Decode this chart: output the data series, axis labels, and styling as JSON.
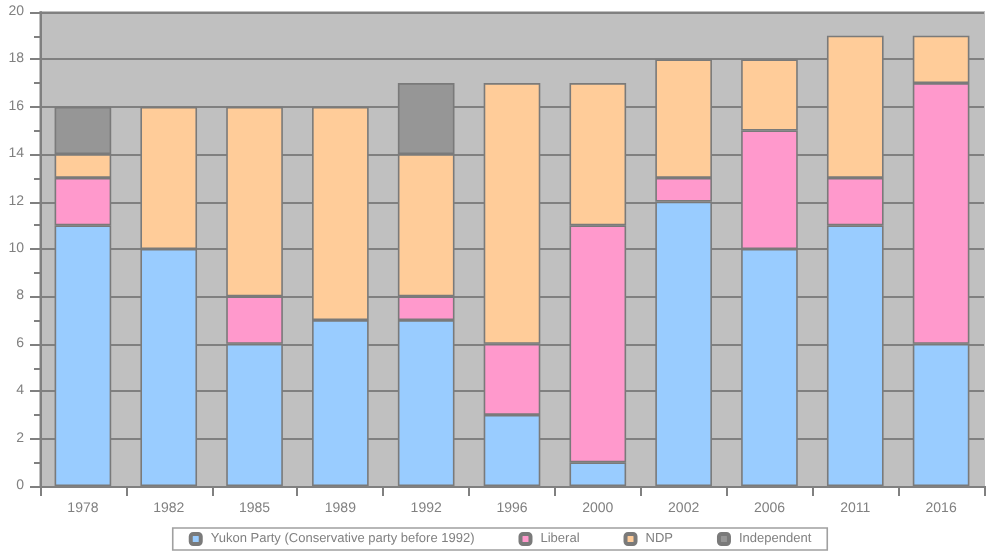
{
  "chart_data": {
    "type": "bar",
    "stacked": true,
    "categories": [
      "1978",
      "1982",
      "1985",
      "1989",
      "1992",
      "1996",
      "2000",
      "2002",
      "2006",
      "2011",
      "2016"
    ],
    "series": [
      {
        "name": "Yukon Party (Conservative party before 1992)",
        "color": "#99ccff",
        "values": [
          11,
          10,
          6,
          7,
          7,
          3,
          1,
          12,
          10,
          11,
          6
        ]
      },
      {
        "name": "Liberal",
        "color": "#ff99cc",
        "values": [
          2,
          0,
          2,
          0,
          1,
          3,
          10,
          1,
          5,
          2,
          11
        ]
      },
      {
        "name": "NDP",
        "color": "#ffcc99",
        "values": [
          1,
          6,
          8,
          9,
          6,
          11,
          6,
          5,
          3,
          6,
          2
        ]
      },
      {
        "name": "Independent",
        "color": "#969696",
        "values": [
          2,
          0,
          0,
          0,
          3,
          0,
          0,
          0,
          0,
          0,
          0
        ]
      }
    ],
    "ylim": [
      0,
      20
    ],
    "yticks": [
      0,
      2,
      4,
      6,
      8,
      10,
      12,
      14,
      16,
      18,
      20
    ],
    "grid": "y",
    "legend": "bottom"
  }
}
